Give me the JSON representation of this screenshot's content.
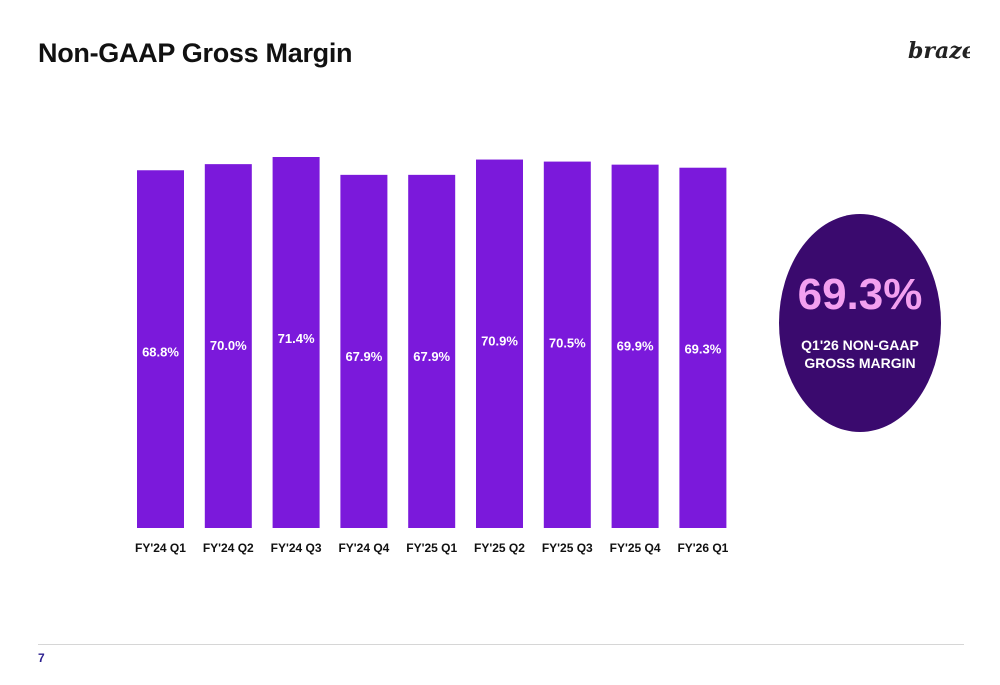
{
  "page": {
    "title": "Non-GAAP Gross Margin",
    "logo_text": "braze",
    "page_number": "7"
  },
  "callout": {
    "value": "69.3%",
    "label": "Q1'26 NON-GAAP GROSS MARGIN",
    "background_color": "#3a0a6e",
    "value_color": "#f3a0f0"
  },
  "colors": {
    "bar": "#7b19db"
  },
  "chart_data": {
    "type": "bar",
    "categories": [
      "FY'24 Q1",
      "FY'24 Q2",
      "FY'24 Q3",
      "FY'24 Q4",
      "FY'25 Q1",
      "FY'25 Q2",
      "FY'25 Q3",
      "FY'25 Q4",
      "FY'26 Q1"
    ],
    "values": [
      68.8,
      70.0,
      71.4,
      67.9,
      67.9,
      70.9,
      70.5,
      69.9,
      69.3
    ],
    "value_labels": [
      "68.8%",
      "70.0%",
      "71.4%",
      "67.9%",
      "67.9%",
      "70.9%",
      "70.5%",
      "69.9%",
      "69.3%"
    ],
    "title": "",
    "xlabel": "",
    "ylabel": "",
    "ylim": [
      0,
      71.4
    ],
    "grid": false,
    "legend": "none"
  }
}
